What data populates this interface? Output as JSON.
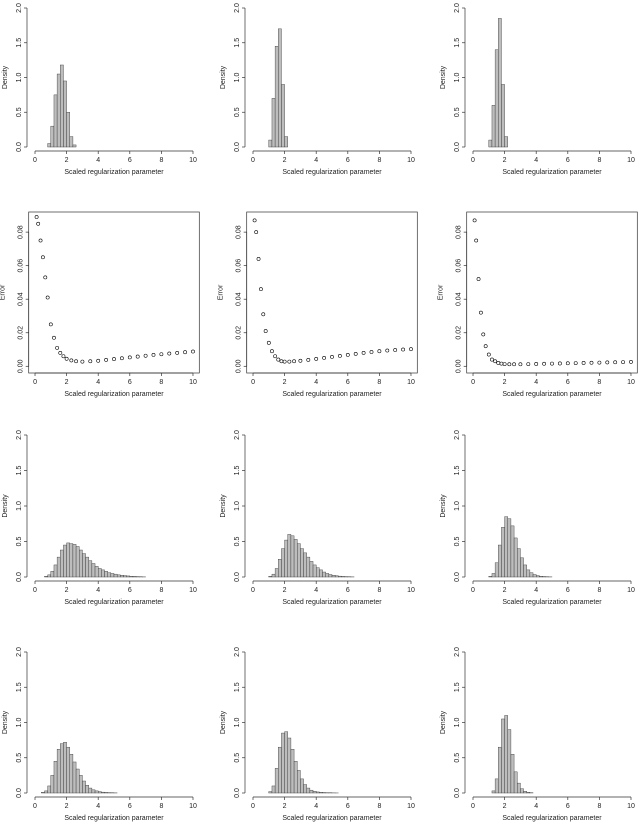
{
  "chart_data": [
    {
      "type": "histogram",
      "xlabel": "Scaled regularization parameter",
      "ylabel": "Density",
      "color": "#bdbdbd",
      "bins": [
        0.8,
        1.0,
        1.2,
        1.4,
        1.6,
        1.8,
        2.0,
        2.2,
        2.4,
        2.6
      ],
      "values": [
        0.05,
        0.3,
        0.75,
        1.05,
        1.18,
        0.95,
        0.5,
        0.15,
        0.03
      ],
      "xlim": [
        0,
        10
      ],
      "xticks": [
        0,
        2,
        4,
        6,
        8,
        10
      ],
      "ylim": [
        0,
        2
      ],
      "yticks": [
        {
          "value": 0,
          "label": "0.0"
        },
        0.5,
        {
          "value": 1,
          "label": "1.0"
        },
        1.5,
        {
          "value": 2,
          "label": "2.0"
        }
      ]
    },
    {
      "type": "histogram",
      "xlabel": "Scaled regularization parameter",
      "ylabel": "Density",
      "color": "#bdbdbd",
      "bins": [
        1.0,
        1.2,
        1.4,
        1.6,
        1.8,
        2.0,
        2.2
      ],
      "values": [
        0.1,
        0.7,
        1.45,
        1.7,
        0.9,
        0.15
      ],
      "xlim": [
        0,
        10
      ],
      "xticks": [
        0,
        2,
        4,
        6,
        8,
        10
      ],
      "ylim": [
        0,
        2
      ],
      "yticks": [
        {
          "value": 0,
          "label": "0.0"
        },
        0.5,
        {
          "value": 1,
          "label": "1.0"
        },
        1.5,
        {
          "value": 2,
          "label": "2.0"
        }
      ]
    },
    {
      "type": "histogram",
      "xlabel": "Scaled regularization parameter",
      "ylabel": "Density",
      "color": "#bdbdbd",
      "bins": [
        1.0,
        1.2,
        1.4,
        1.6,
        1.8,
        2.0,
        2.2
      ],
      "values": [
        0.1,
        0.6,
        1.4,
        1.85,
        0.9,
        0.15
      ],
      "xlim": [
        0,
        10
      ],
      "xticks": [
        0,
        2,
        4,
        6,
        8,
        10
      ],
      "ylim": [
        0,
        2
      ],
      "yticks": [
        {
          "value": 0,
          "label": "0.0"
        },
        0.5,
        {
          "value": 1,
          "label": "1.0"
        },
        1.5,
        {
          "value": 2,
          "label": "2.0"
        }
      ]
    },
    {
      "type": "scatter",
      "xlabel": "Scaled regularization parameter",
      "ylabel": "Error",
      "color": "#000000",
      "x": [
        0.1,
        0.2,
        0.35,
        0.5,
        0.65,
        0.8,
        1.0,
        1.2,
        1.4,
        1.6,
        1.8,
        2.0,
        2.3,
        2.6,
        3,
        3.5,
        4,
        4.5,
        5,
        5.5,
        6,
        6.5,
        7,
        7.5,
        8,
        8.5,
        9,
        9.5,
        10
      ],
      "values": [
        0.089,
        0.085,
        0.075,
        0.065,
        0.053,
        0.041,
        0.025,
        0.017,
        0.011,
        0.008,
        0.006,
        0.0045,
        0.0035,
        0.003,
        0.0028,
        0.003,
        0.0033,
        0.0038,
        0.0043,
        0.0048,
        0.0053,
        0.0058,
        0.0063,
        0.0068,
        0.0072,
        0.0076,
        0.008,
        0.0084,
        0.0088
      ],
      "xlim": [
        -0.4,
        10.4
      ],
      "xticks": [
        0,
        2,
        4,
        6,
        8,
        10
      ],
      "ylim": [
        -0.004,
        0.092
      ],
      "yticks": [
        {
          "value": 0,
          "label": "0.00"
        },
        {
          "value": 0.02,
          "label": "0.02"
        },
        {
          "value": 0.04,
          "label": "0.04"
        },
        {
          "value": 0.06,
          "label": "0.06"
        },
        {
          "value": 0.08,
          "label": "0.08"
        }
      ]
    },
    {
      "type": "scatter",
      "xlabel": "Scaled regularization parameter",
      "ylabel": "Error",
      "color": "#000000",
      "x": [
        0.1,
        0.2,
        0.35,
        0.5,
        0.65,
        0.8,
        1.0,
        1.2,
        1.4,
        1.6,
        1.8,
        2.0,
        2.3,
        2.6,
        3,
        3.5,
        4,
        4.5,
        5,
        5.5,
        6,
        6.5,
        7,
        7.5,
        8,
        8.5,
        9,
        9.5,
        10
      ],
      "values": [
        0.087,
        0.08,
        0.064,
        0.046,
        0.031,
        0.021,
        0.014,
        0.009,
        0.006,
        0.004,
        0.003,
        0.0028,
        0.0028,
        0.003,
        0.0033,
        0.0038,
        0.0044,
        0.005,
        0.0056,
        0.0062,
        0.0068,
        0.0074,
        0.008,
        0.0085,
        0.009,
        0.0094,
        0.0097,
        0.01,
        0.0102
      ],
      "xlim": [
        -0.4,
        10.4
      ],
      "xticks": [
        0,
        2,
        4,
        6,
        8,
        10
      ],
      "ylim": [
        -0.004,
        0.092
      ],
      "yticks": [
        {
          "value": 0,
          "label": "0.00"
        },
        {
          "value": 0.02,
          "label": "0.02"
        },
        {
          "value": 0.04,
          "label": "0.04"
        },
        {
          "value": 0.06,
          "label": "0.06"
        },
        {
          "value": 0.08,
          "label": "0.08"
        }
      ]
    },
    {
      "type": "scatter",
      "xlabel": "Scaled regularization parameter",
      "ylabel": "Error",
      "color": "#000000",
      "x": [
        0.1,
        0.2,
        0.35,
        0.5,
        0.65,
        0.8,
        1.0,
        1.2,
        1.4,
        1.6,
        1.8,
        2.0,
        2.3,
        2.6,
        3,
        3.5,
        4,
        4.5,
        5,
        5.5,
        6,
        6.5,
        7,
        7.5,
        8,
        8.5,
        9,
        9.5,
        10
      ],
      "values": [
        0.087,
        0.075,
        0.052,
        0.032,
        0.019,
        0.012,
        0.007,
        0.004,
        0.003,
        0.002,
        0.0016,
        0.0013,
        0.0012,
        0.0012,
        0.0012,
        0.0013,
        0.0014,
        0.0015,
        0.0016,
        0.0017,
        0.0018,
        0.0019,
        0.002,
        0.0021,
        0.0022,
        0.0023,
        0.0024,
        0.0025,
        0.0026
      ],
      "xlim": [
        -0.4,
        10.4
      ],
      "xticks": [
        0,
        2,
        4,
        6,
        8,
        10
      ],
      "ylim": [
        -0.004,
        0.092
      ],
      "yticks": [
        {
          "value": 0,
          "label": "0.00"
        },
        {
          "value": 0.02,
          "label": "0.02"
        },
        {
          "value": 0.04,
          "label": "0.04"
        },
        {
          "value": 0.06,
          "label": "0.06"
        },
        {
          "value": 0.08,
          "label": "0.08"
        }
      ]
    },
    {
      "type": "histogram",
      "xlabel": "Scaled regularization parameter",
      "ylabel": "Density",
      "color": "#bdbdbd",
      "bins": [
        0.6,
        0.8,
        1.0,
        1.2,
        1.4,
        1.6,
        1.8,
        2.0,
        2.2,
        2.4,
        2.6,
        2.8,
        3.0,
        3.2,
        3.4,
        3.6,
        3.8,
        4.0,
        4.2,
        4.4,
        4.6,
        4.8,
        5.0,
        5.2,
        5.4,
        5.6,
        5.8,
        6.0,
        6.2,
        6.4,
        6.6,
        6.8,
        7.0
      ],
      "values": [
        0.01,
        0.03,
        0.08,
        0.17,
        0.28,
        0.38,
        0.45,
        0.48,
        0.47,
        0.46,
        0.43,
        0.38,
        0.33,
        0.28,
        0.23,
        0.19,
        0.15,
        0.12,
        0.1,
        0.08,
        0.06,
        0.05,
        0.04,
        0.03,
        0.025,
        0.02,
        0.015,
        0.01,
        0.008,
        0.005,
        0.003,
        0.002
      ],
      "xlim": [
        0,
        10
      ],
      "xticks": [
        0,
        2,
        4,
        6,
        8,
        10
      ],
      "ylim": [
        0,
        2
      ],
      "yticks": [
        {
          "value": 0,
          "label": "0.0"
        },
        0.5,
        {
          "value": 1,
          "label": "1.0"
        },
        1.5,
        {
          "value": 2,
          "label": "2.0"
        }
      ]
    },
    {
      "type": "histogram",
      "xlabel": "Scaled regularization parameter",
      "ylabel": "Density",
      "color": "#bdbdbd",
      "bins": [
        1.0,
        1.2,
        1.4,
        1.6,
        1.8,
        2.0,
        2.2,
        2.4,
        2.6,
        2.8,
        3.0,
        3.2,
        3.4,
        3.6,
        3.8,
        4.0,
        4.2,
        4.4,
        4.6,
        4.8,
        5.0,
        5.2,
        5.4,
        5.6,
        5.8,
        6.0,
        6.2,
        6.4
      ],
      "values": [
        0.01,
        0.04,
        0.12,
        0.25,
        0.4,
        0.52,
        0.6,
        0.58,
        0.53,
        0.47,
        0.4,
        0.34,
        0.28,
        0.22,
        0.17,
        0.13,
        0.1,
        0.07,
        0.05,
        0.035,
        0.025,
        0.018,
        0.012,
        0.008,
        0.005,
        0.003,
        0.002
      ],
      "xlim": [
        0,
        10
      ],
      "xticks": [
        0,
        2,
        4,
        6,
        8,
        10
      ],
      "ylim": [
        0,
        2
      ],
      "yticks": [
        {
          "value": 0,
          "label": "0.0"
        },
        0.5,
        {
          "value": 1,
          "label": "1.0"
        },
        1.5,
        {
          "value": 2,
          "label": "2.0"
        }
      ]
    },
    {
      "type": "histogram",
      "xlabel": "Scaled regularization parameter",
      "ylabel": "Density",
      "color": "#bdbdbd",
      "bins": [
        1.0,
        1.2,
        1.4,
        1.6,
        1.8,
        2.0,
        2.2,
        2.4,
        2.6,
        2.8,
        3.0,
        3.2,
        3.4,
        3.6,
        3.8,
        4.0,
        4.2,
        4.4,
        4.6,
        4.8,
        5.0
      ],
      "values": [
        0.01,
        0.05,
        0.2,
        0.45,
        0.7,
        0.85,
        0.82,
        0.72,
        0.55,
        0.4,
        0.27,
        0.17,
        0.1,
        0.06,
        0.035,
        0.02,
        0.01,
        0.006,
        0.003,
        0.002
      ],
      "xlim": [
        0,
        10
      ],
      "xticks": [
        0,
        2,
        4,
        6,
        8,
        10
      ],
      "ylim": [
        0,
        2
      ],
      "yticks": [
        {
          "value": 0,
          "label": "0.0"
        },
        0.5,
        {
          "value": 1,
          "label": "1.0"
        },
        1.5,
        {
          "value": 2,
          "label": "2.0"
        }
      ]
    },
    {
      "type": "histogram",
      "xlabel": "Scaled regularization parameter",
      "ylabel": "Density",
      "color": "#bdbdbd",
      "bins": [
        0.4,
        0.6,
        0.8,
        1.0,
        1.2,
        1.4,
        1.6,
        1.8,
        2.0,
        2.2,
        2.4,
        2.6,
        2.8,
        3.0,
        3.2,
        3.4,
        3.6,
        3.8,
        4.0,
        4.2,
        4.4,
        4.6,
        4.8,
        5.0,
        5.2
      ],
      "values": [
        0.01,
        0.03,
        0.1,
        0.25,
        0.45,
        0.62,
        0.7,
        0.72,
        0.65,
        0.55,
        0.44,
        0.34,
        0.25,
        0.17,
        0.11,
        0.07,
        0.045,
        0.03,
        0.02,
        0.012,
        0.008,
        0.005,
        0.003,
        0.002
      ],
      "xlim": [
        0,
        10
      ],
      "xticks": [
        0,
        2,
        4,
        6,
        8,
        10
      ],
      "ylim": [
        0,
        2
      ],
      "yticks": [
        {
          "value": 0,
          "label": "0.0"
        },
        0.5,
        {
          "value": 1,
          "label": "1.0"
        },
        1.5,
        {
          "value": 2,
          "label": "2.0"
        }
      ]
    },
    {
      "type": "histogram",
      "xlabel": "Scaled regularization parameter",
      "ylabel": "Density",
      "color": "#bdbdbd",
      "bins": [
        1.0,
        1.2,
        1.4,
        1.6,
        1.8,
        2.0,
        2.2,
        2.4,
        2.6,
        2.8,
        3.0,
        3.2,
        3.4,
        3.6,
        3.8,
        4.0,
        4.2,
        4.4,
        4.6,
        4.8,
        5.0,
        5.2,
        5.4
      ],
      "values": [
        0.02,
        0.1,
        0.35,
        0.65,
        0.85,
        0.87,
        0.78,
        0.62,
        0.45,
        0.32,
        0.2,
        0.12,
        0.07,
        0.04,
        0.025,
        0.015,
        0.01,
        0.006,
        0.004,
        0.003,
        0.002,
        0.001
      ],
      "xlim": [
        0,
        10
      ],
      "xticks": [
        0,
        2,
        4,
        6,
        8,
        10
      ],
      "ylim": [
        0,
        2
      ],
      "yticks": [
        {
          "value": 0,
          "label": "0.0"
        },
        0.5,
        {
          "value": 1,
          "label": "1.0"
        },
        1.5,
        {
          "value": 2,
          "label": "2.0"
        }
      ]
    },
    {
      "type": "histogram",
      "xlabel": "Scaled regularization parameter",
      "ylabel": "Density",
      "color": "#bdbdbd",
      "bins": [
        1.2,
        1.4,
        1.6,
        1.8,
        2.0,
        2.2,
        2.4,
        2.6,
        2.8,
        3.0,
        3.2,
        3.4,
        3.6,
        3.8
      ],
      "values": [
        0.03,
        0.2,
        0.65,
        1.05,
        1.1,
        0.9,
        0.55,
        0.3,
        0.14,
        0.06,
        0.025,
        0.01,
        0.004
      ],
      "xlim": [
        0,
        10
      ],
      "xticks": [
        0,
        2,
        4,
        6,
        8,
        10
      ],
      "ylim": [
        0,
        2
      ],
      "yticks": [
        {
          "value": 0,
          "label": "0.0"
        },
        0.5,
        {
          "value": 1,
          "label": "1.0"
        },
        1.5,
        {
          "value": 2,
          "label": "2.0"
        }
      ]
    }
  ]
}
